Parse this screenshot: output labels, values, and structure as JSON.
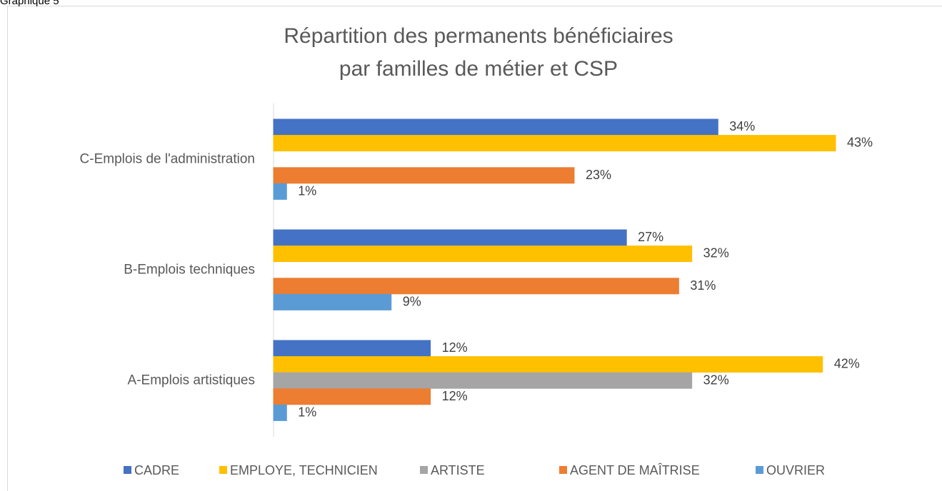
{
  "caption": "Graphique 5",
  "chart_data": {
    "type": "barh",
    "title": [
      "Répartition des permanents bénéficiaires",
      "par familles de métier et CSP"
    ],
    "categories": [
      "C-Emplois de l'administration",
      "B-Emplois techniques",
      "A-Emplois artistiques"
    ],
    "series": [
      {
        "name": "CADRE",
        "color": "#4472c4",
        "values": [
          34,
          27,
          12
        ],
        "value_labels": [
          "34%",
          "27%",
          "12%"
        ]
      },
      {
        "name": "EMPLOYE, TECHNICIEN",
        "color": "#ffc000",
        "values": [
          43,
          32,
          42
        ],
        "value_labels": [
          "43%",
          "32%",
          "42%"
        ]
      },
      {
        "name": "ARTISTE",
        "color": "#a5a5a5",
        "values": [
          0,
          0,
          32
        ],
        "value_labels": [
          null,
          null,
          "32%"
        ]
      },
      {
        "name": "AGENT DE MAÎTRISE",
        "color": "#ed7d31",
        "values": [
          23,
          31,
          12
        ],
        "value_labels": [
          "23%",
          "31%",
          "12%"
        ]
      },
      {
        "name": "OUVRIER",
        "color": "#5b9bd5",
        "values": [
          1,
          9,
          1
        ],
        "value_labels": [
          "1%",
          "9%",
          "1%"
        ]
      }
    ],
    "legend": "bottom"
  }
}
